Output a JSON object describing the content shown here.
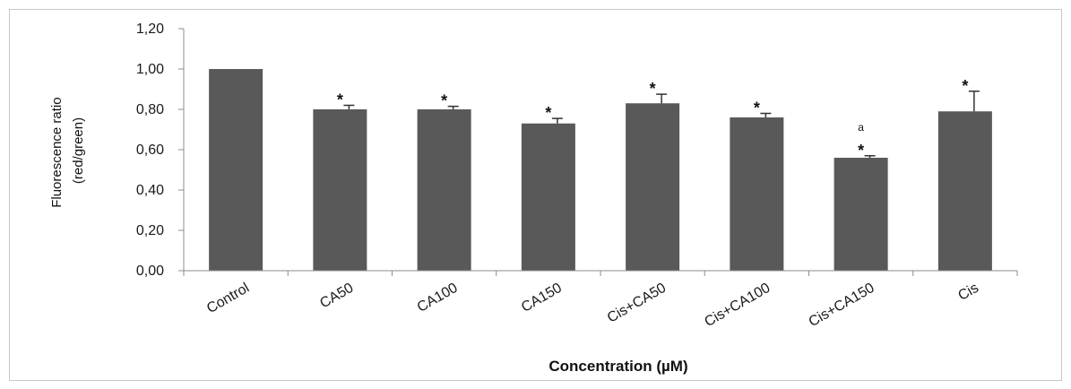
{
  "chart_data": {
    "type": "bar",
    "categories": [
      "Control",
      "CA50",
      "CA100",
      "CA150",
      "Cis+CA50",
      "Cis+CA100",
      "Cis+CA150",
      "Cis"
    ],
    "values": [
      1.0,
      0.8,
      0.8,
      0.73,
      0.83,
      0.76,
      0.56,
      0.79
    ],
    "error": [
      0.0,
      0.02,
      0.015,
      0.025,
      0.045,
      0.02,
      0.01,
      0.1
    ],
    "annotations": [
      [],
      [
        "*"
      ],
      [
        "*"
      ],
      [
        "*"
      ],
      [
        "*"
      ],
      [
        "*"
      ],
      [
        "a",
        "*"
      ],
      [
        "*"
      ]
    ],
    "xlabel": "Concentration (µM)",
    "ylabel_lines": [
      "Fluorescence ratio",
      "(red/green)"
    ],
    "ylim": [
      0,
      1.2
    ],
    "yticks": [
      "0,00",
      "0,20",
      "0,40",
      "0,60",
      "0,80",
      "1,00",
      "1,20"
    ],
    "grid": false,
    "bar_color": "#595959",
    "error_color": "#333333"
  }
}
